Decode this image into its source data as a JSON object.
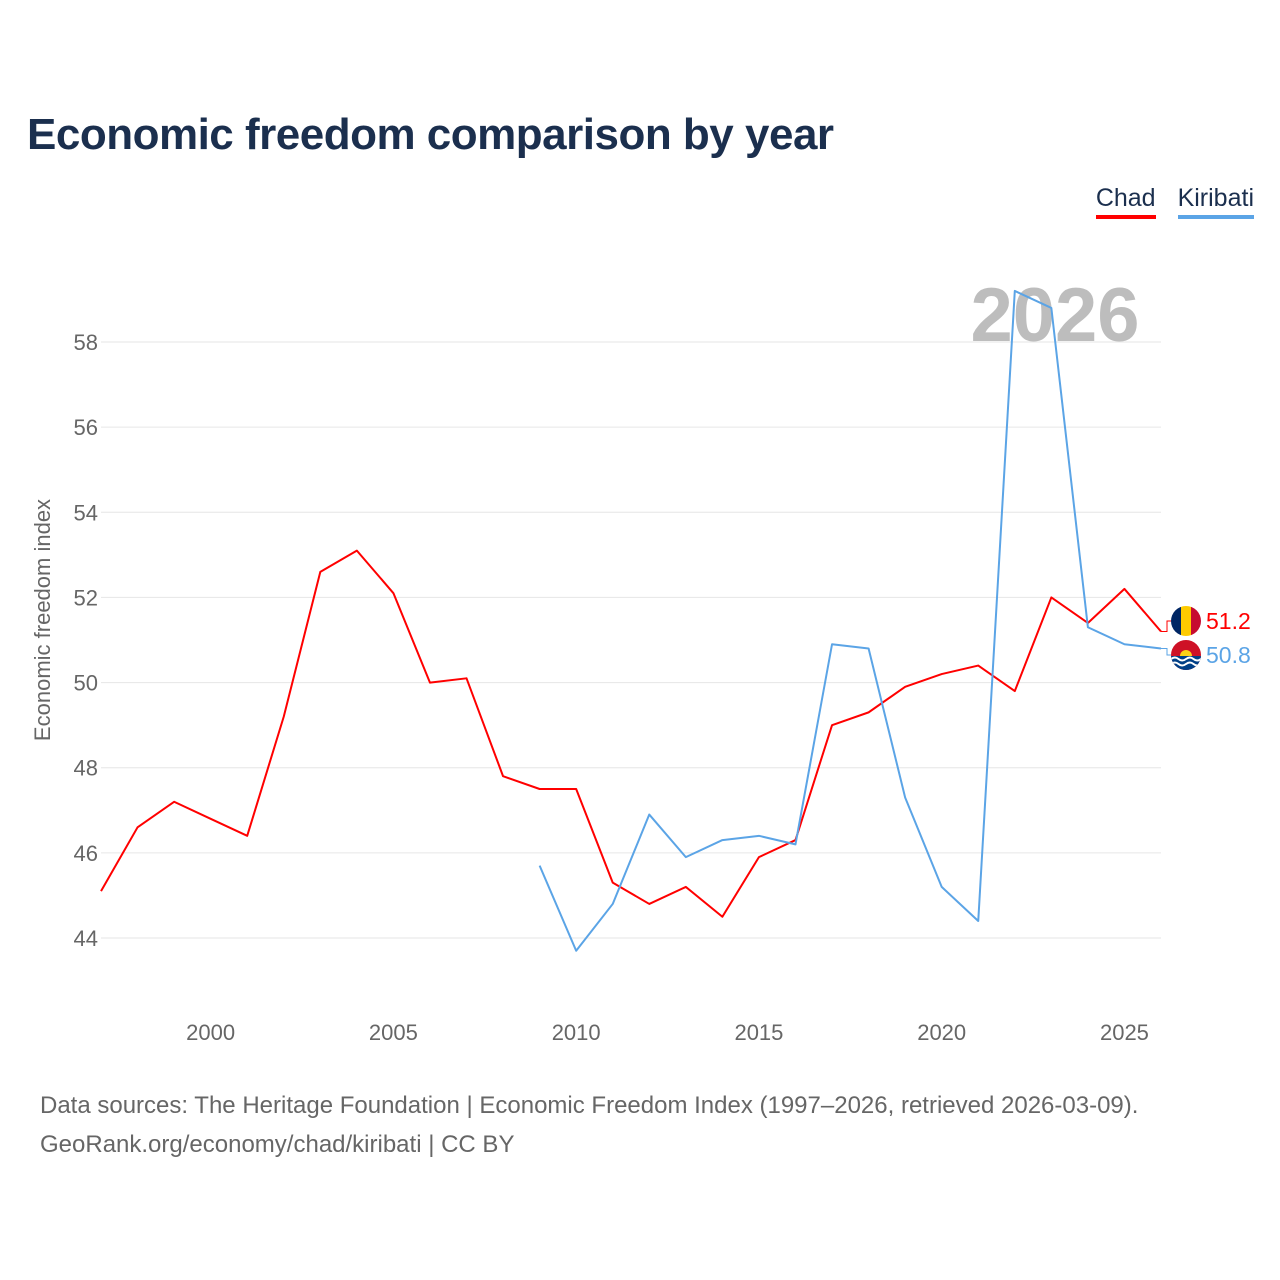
{
  "title": "Economic freedom comparison by year",
  "footer": {
    "line1": "Data sources: The Heritage Foundation | Economic Freedom Index (1997–2026, retrieved 2026-03-09).",
    "line2": "GeoRank.org/economy/chad/kiribati | CC BY"
  },
  "chart_data": {
    "type": "line",
    "title": "Economic freedom comparison by year",
    "xlabel": "",
    "ylabel": "Economic freedom index",
    "xlim": [
      1997,
      2026
    ],
    "ylim": [
      42.5,
      60
    ],
    "yticks": [
      44,
      46,
      48,
      50,
      52,
      54,
      56,
      58
    ],
    "xticks": [
      2000,
      2005,
      2010,
      2015,
      2020,
      2025
    ],
    "grid": true,
    "legend_position": "top-right",
    "watermark_year": "2026",
    "series": [
      {
        "name": "Chad",
        "color": "#ff0000",
        "x": [
          1997,
          1998,
          1999,
          2000,
          2001,
          2002,
          2003,
          2004,
          2005,
          2006,
          2007,
          2008,
          2009,
          2010,
          2011,
          2012,
          2013,
          2014,
          2015,
          2016,
          2017,
          2018,
          2019,
          2020,
          2021,
          2022,
          2023,
          2024,
          2025,
          2026
        ],
        "values": [
          45.1,
          46.6,
          47.2,
          46.8,
          46.4,
          49.2,
          52.6,
          53.1,
          52.1,
          50.0,
          50.1,
          47.8,
          47.5,
          47.5,
          45.3,
          44.8,
          45.2,
          44.5,
          45.9,
          46.3,
          49.0,
          49.3,
          49.9,
          50.2,
          50.4,
          49.8,
          52.0,
          51.4,
          52.2,
          51.2
        ],
        "end_label": "51.2"
      },
      {
        "name": "Kiribati",
        "color": "#5ba4e6",
        "x": [
          2009,
          2010,
          2011,
          2012,
          2013,
          2014,
          2015,
          2016,
          2017,
          2018,
          2019,
          2020,
          2021,
          2022,
          2023,
          2024,
          2025,
          2026
        ],
        "values": [
          45.7,
          43.7,
          44.8,
          46.9,
          45.9,
          46.3,
          46.4,
          46.2,
          50.9,
          50.8,
          47.3,
          45.2,
          44.4,
          59.2,
          58.8,
          51.3,
          50.9,
          50.8
        ],
        "end_label": "50.8"
      }
    ]
  }
}
